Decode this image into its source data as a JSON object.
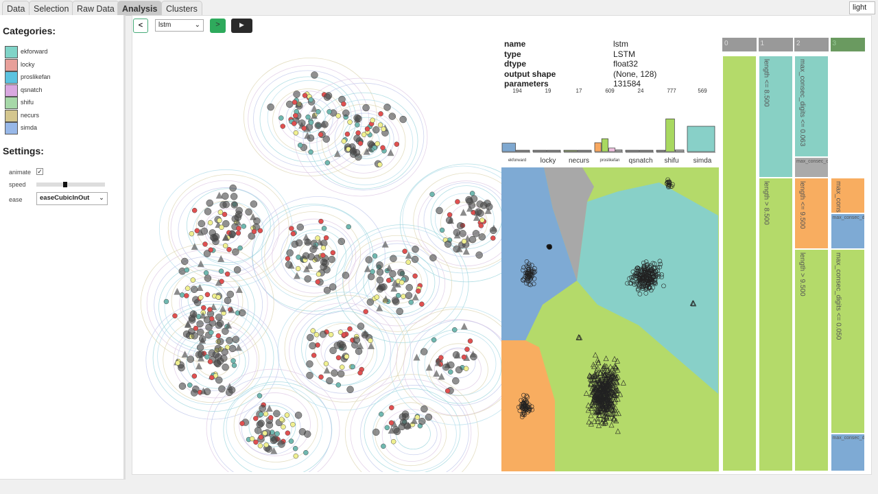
{
  "tabs": [
    "Data",
    "Selection",
    "Raw Data",
    "Analysis",
    "Clusters"
  ],
  "theme": "light",
  "sidebar": {
    "categories_title": "Categories:",
    "categories": [
      {
        "name": "ekforward",
        "color": "#80d4c8"
      },
      {
        "name": "locky",
        "color": "#e8a09a"
      },
      {
        "name": "proslikefan",
        "color": "#5bc3e0"
      },
      {
        "name": "qsnatch",
        "color": "#d9a8e0"
      },
      {
        "name": "shifu",
        "color": "#a6d8a8"
      },
      {
        "name": "necurs",
        "color": "#d4c68e"
      },
      {
        "name": "simda",
        "color": "#98b8e8"
      }
    ],
    "settings_title": "Settings:",
    "animate_label": "animate",
    "animate": true,
    "speed_label": "speed",
    "speed": 0.42,
    "ease_label": "ease",
    "ease": "easeCubicInOut"
  },
  "toolbar": {
    "back": "<",
    "layer": "lstm",
    "next": ">",
    "play": "▶"
  },
  "info": [
    {
      "k": "name",
      "v": "lstm"
    },
    {
      "k": "type",
      "v": "LSTM"
    },
    {
      "k": "dtype",
      "v": "float32"
    },
    {
      "k": "output shape",
      "v": "(None, 128)"
    },
    {
      "k": "parameters",
      "v": "131584"
    }
  ],
  "chart_data": {
    "type": "bar",
    "categories": [
      "ekforward",
      "locky",
      "necurs",
      "proslikefan",
      "qsnatch",
      "shifu",
      "simda"
    ],
    "totals": [
      194,
      19,
      17,
      609,
      24,
      777,
      569
    ],
    "groups": [
      [
        {
          "c": "#7fa8d0",
          "v": 190
        },
        {
          "c": "#888",
          "v": 4
        }
      ],
      [
        {
          "c": "#888",
          "v": 10
        },
        {
          "c": "#888",
          "v": 9
        }
      ],
      [
        {
          "c": "#889966",
          "v": 10
        },
        {
          "c": "#888",
          "v": 7
        }
      ],
      [
        {
          "c": "#f8a860",
          "v": 200
        },
        {
          "c": "#a8d860",
          "v": 290
        },
        {
          "c": "#f0c0e0",
          "v": 80
        },
        {
          "c": "#aaa",
          "v": 39
        }
      ],
      [
        {
          "c": "#888",
          "v": 12
        },
        {
          "c": "#888",
          "v": 12
        }
      ],
      [
        {
          "c": "#888",
          "v": 5
        },
        {
          "c": "#a8d860",
          "v": 735
        },
        {
          "c": "#aaa",
          "v": 37
        }
      ],
      [
        {
          "c": "#88d0c8",
          "v": 569
        }
      ]
    ],
    "ymax": 800
  },
  "tree": {
    "headers": [
      "0",
      "1",
      "2",
      "3"
    ],
    "nodes": [
      {
        "col": 0,
        "from": 0,
        "to": 1,
        "color": "#b4da6a",
        "label": ""
      },
      {
        "col": 1,
        "from": 0,
        "to": 0.294,
        "color": "#88d0c4",
        "label": "length <= 8.500"
      },
      {
        "col": 1,
        "from": 0.294,
        "to": 1,
        "color": "#b4da6a",
        "label": "length > 8.500"
      },
      {
        "col": 2,
        "from": 0,
        "to": 0.245,
        "color": "#88d0c4",
        "label": "max_consec_digits <= 0.063"
      },
      {
        "col": 2,
        "from": 0.245,
        "to": 0.294,
        "color": "#aaa",
        "label": "max_consec_d",
        "small": true
      },
      {
        "col": 2,
        "from": 0.294,
        "to": 0.465,
        "color": "#f8ad60",
        "label": "length <= 9.500"
      },
      {
        "col": 2,
        "from": 0.465,
        "to": 1,
        "color": "#b4da6a",
        "label": "length > 9.500"
      },
      {
        "col": 3,
        "from": 0.294,
        "to": 0.38,
        "color": "#f8ad60",
        "label": "max_cons"
      },
      {
        "col": 3,
        "from": 0.38,
        "to": 0.465,
        "color": "#7eaad4",
        "label": "max_consec_d",
        "small": true
      },
      {
        "col": 3,
        "from": 0.465,
        "to": 0.91,
        "color": "#b4da6a",
        "label": "max_consec_digits <= 0.050"
      },
      {
        "col": 3,
        "from": 0.91,
        "to": 1,
        "color": "#7eaad4",
        "label": "max_consec_d",
        "small": true
      }
    ]
  }
}
